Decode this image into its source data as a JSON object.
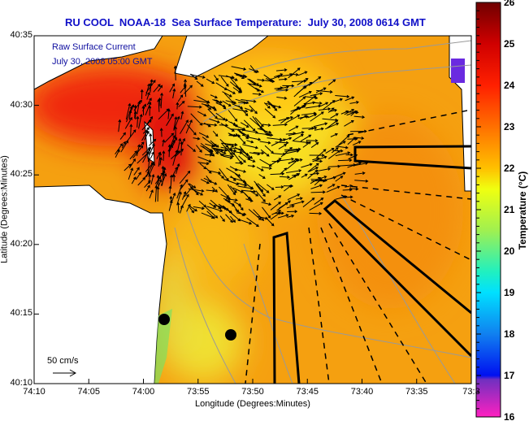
{
  "title": "RU COOL  NOAA-18  Sea Surface Temperature:  July 30, 2008 0614 GMT",
  "legend": {
    "line1": "Raw Surface Current",
    "line2": "July 30, 2008 05:00 GMT"
  },
  "scale_label": "50 cm/s",
  "x_axis": {
    "title": "Longitude (Degrees:Minutes)",
    "ticks": [
      "74:10",
      "74:05",
      "74:00",
      "73:55",
      "73:50",
      "73:45",
      "73:40",
      "73:35",
      "73:3"
    ]
  },
  "y_axis": {
    "title": "Latitude (Degrees:Minutes)",
    "ticks": [
      "40:35",
      "40:30",
      "40:25",
      "40:20",
      "40:15",
      "40:10"
    ]
  },
  "colorbar": {
    "title": "Temperature (°C)",
    "ticks": [
      "26",
      "25",
      "24",
      "23",
      "22",
      "21",
      "20",
      "19",
      "18",
      "17",
      "16"
    ],
    "min": 16,
    "max": 26
  },
  "colors": {
    "title": "#1010c8",
    "water_base": "#f5a010",
    "warm": "#f03010",
    "cool": "#f0f020"
  }
}
